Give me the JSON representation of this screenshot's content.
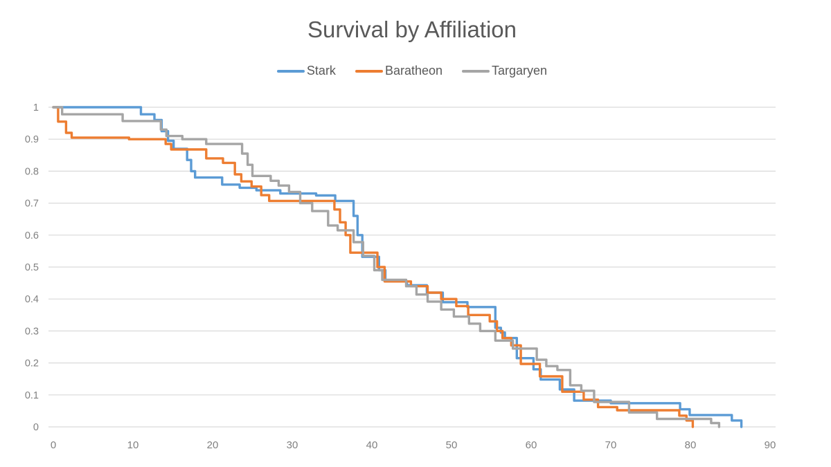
{
  "chart_data": {
    "type": "line",
    "step": true,
    "title": "Survival by Affiliation",
    "xlabel": "",
    "ylabel": "",
    "xlim": [
      0,
      90
    ],
    "ylim": [
      0,
      1
    ],
    "xticks": [
      0,
      10,
      20,
      30,
      40,
      50,
      60,
      70,
      80,
      90
    ],
    "yticks": [
      0,
      0.1,
      0.2,
      0.3,
      0.4,
      0.5,
      0.6,
      0.7,
      0.8,
      0.9,
      1
    ],
    "grid": "horizontal",
    "legend_position": "top",
    "colors": {
      "grid": "#d9d9d9",
      "tick_label": "#808080",
      "title": "#595959",
      "legend_label": "#595959",
      "background": "#ffffff"
    },
    "series": [
      {
        "name": "Stark",
        "color": "#5B9BD5",
        "points": [
          [
            0,
            1.0
          ],
          [
            11,
            0.978
          ],
          [
            12.7,
            0.96
          ],
          [
            13.6,
            0.925
          ],
          [
            14.4,
            0.895
          ],
          [
            15.1,
            0.87
          ],
          [
            16.8,
            0.835
          ],
          [
            17.3,
            0.8
          ],
          [
            17.8,
            0.78
          ],
          [
            21.2,
            0.758
          ],
          [
            23.4,
            0.748
          ],
          [
            25.5,
            0.74
          ],
          [
            28.5,
            0.73
          ],
          [
            33,
            0.724
          ],
          [
            35.4,
            0.707
          ],
          [
            37.7,
            0.66
          ],
          [
            38.2,
            0.6
          ],
          [
            38.8,
            0.532
          ],
          [
            40.9,
            0.49
          ],
          [
            41.7,
            0.455
          ],
          [
            44.4,
            0.443
          ],
          [
            46.9,
            0.42
          ],
          [
            48.9,
            0.39
          ],
          [
            52,
            0.375
          ],
          [
            55.5,
            0.31
          ],
          [
            56.2,
            0.295
          ],
          [
            56.7,
            0.278
          ],
          [
            58.2,
            0.215
          ],
          [
            60.3,
            0.18
          ],
          [
            61.2,
            0.148
          ],
          [
            63.6,
            0.117
          ],
          [
            65.4,
            0.082
          ],
          [
            70,
            0.074
          ],
          [
            78.7,
            0.055
          ],
          [
            79.9,
            0.037
          ],
          [
            85.2,
            0.02
          ],
          [
            86.4,
            0
          ]
        ]
      },
      {
        "name": "Baratheon",
        "color": "#ED7D31",
        "points": [
          [
            0,
            1.0
          ],
          [
            0.6,
            0.955
          ],
          [
            1.6,
            0.92
          ],
          [
            2.3,
            0.905
          ],
          [
            9.5,
            0.9
          ],
          [
            14.1,
            0.885
          ],
          [
            14.8,
            0.868
          ],
          [
            19.2,
            0.84
          ],
          [
            21.3,
            0.826
          ],
          [
            22.8,
            0.79
          ],
          [
            23.6,
            0.768
          ],
          [
            24.9,
            0.752
          ],
          [
            26.1,
            0.725
          ],
          [
            27.1,
            0.707
          ],
          [
            35.3,
            0.68
          ],
          [
            36,
            0.64
          ],
          [
            36.7,
            0.6
          ],
          [
            37.3,
            0.545
          ],
          [
            40.7,
            0.5
          ],
          [
            41.6,
            0.455
          ],
          [
            44.9,
            0.44
          ],
          [
            47,
            0.42
          ],
          [
            48.7,
            0.4
          ],
          [
            50.6,
            0.378
          ],
          [
            52.1,
            0.35
          ],
          [
            54.8,
            0.33
          ],
          [
            55.7,
            0.3
          ],
          [
            56.4,
            0.278
          ],
          [
            57.5,
            0.255
          ],
          [
            58.7,
            0.197
          ],
          [
            61.1,
            0.158
          ],
          [
            63.9,
            0.11
          ],
          [
            66.6,
            0.085
          ],
          [
            68.4,
            0.062
          ],
          [
            70.8,
            0.052
          ],
          [
            78.6,
            0.035
          ],
          [
            79.5,
            0.02
          ],
          [
            80.3,
            0
          ]
        ]
      },
      {
        "name": "Targaryen",
        "color": "#A5A5A5",
        "points": [
          [
            0,
            1.0
          ],
          [
            1.1,
            0.978
          ],
          [
            8.7,
            0.957
          ],
          [
            13.5,
            0.93
          ],
          [
            14.2,
            0.91
          ],
          [
            16.2,
            0.9
          ],
          [
            19.2,
            0.885
          ],
          [
            23.7,
            0.855
          ],
          [
            24.4,
            0.82
          ],
          [
            25,
            0.785
          ],
          [
            27.3,
            0.77
          ],
          [
            28.3,
            0.755
          ],
          [
            29.6,
            0.735
          ],
          [
            31,
            0.7
          ],
          [
            32.5,
            0.675
          ],
          [
            34.5,
            0.63
          ],
          [
            35.7,
            0.615
          ],
          [
            37.7,
            0.578
          ],
          [
            38.9,
            0.535
          ],
          [
            40.3,
            0.49
          ],
          [
            41.3,
            0.46
          ],
          [
            44.3,
            0.44
          ],
          [
            45.6,
            0.414
          ],
          [
            47,
            0.392
          ],
          [
            48.7,
            0.367
          ],
          [
            50.3,
            0.345
          ],
          [
            52.2,
            0.323
          ],
          [
            53.6,
            0.3
          ],
          [
            55.5,
            0.27
          ],
          [
            57.7,
            0.245
          ],
          [
            60.7,
            0.21
          ],
          [
            61.9,
            0.19
          ],
          [
            63.3,
            0.178
          ],
          [
            64.9,
            0.13
          ],
          [
            66.3,
            0.113
          ],
          [
            67.9,
            0.078
          ],
          [
            72.3,
            0.045
          ],
          [
            75.8,
            0.025
          ],
          [
            82.6,
            0.012
          ],
          [
            83.6,
            0
          ]
        ]
      }
    ]
  }
}
